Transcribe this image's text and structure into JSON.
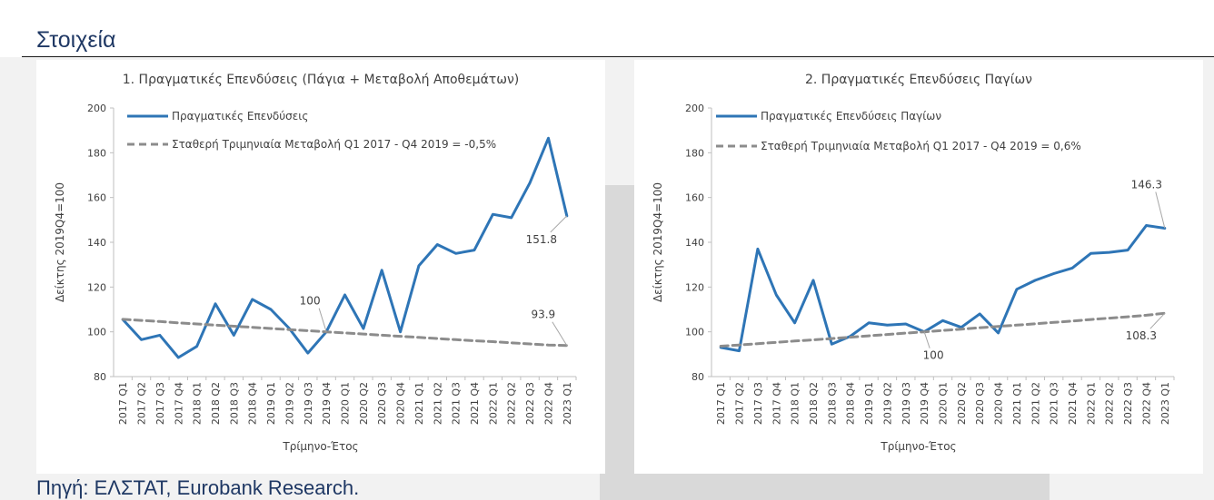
{
  "page": {
    "title": "Στοιχεία",
    "source": "Πηγή: ΕΛΣΤΑΤ, Eurobank Research."
  },
  "colors": {
    "series_main": "#2e75b6",
    "series_trend": "#8c8c8c",
    "title_text": "#1f3864",
    "axis": "#bfbfbf"
  },
  "chart_data": [
    {
      "type": "line",
      "title": "1. Πραγματικές Επενδύσεις (Πάγια + Μεταβολή Αποθεμάτων)",
      "xlabel": "Τρίμηνο-Έτος",
      "ylabel": "Δείκτης 2019Q4=100",
      "ylim": [
        80,
        200
      ],
      "yticks": [
        80,
        100,
        120,
        140,
        160,
        180,
        200
      ],
      "grid": false,
      "legend_position": "top-left",
      "categories": [
        "2017 Q1",
        "2017 Q2",
        "2017 Q3",
        "2017 Q4",
        "2018 Q1",
        "2018 Q2",
        "2018 Q3",
        "2018 Q4",
        "2019 Q1",
        "2019 Q2",
        "2019 Q3",
        "2019 Q4",
        "2020 Q1",
        "2020 Q2",
        "2020 Q3",
        "2020 Q4",
        "2021 Q1",
        "2021 Q2",
        "2021 Q3",
        "2021 Q4",
        "2022 Q1",
        "2022 Q2",
        "2022 Q3",
        "2022 Q4",
        "2023 Q1"
      ],
      "series": [
        {
          "name": "Πραγματικές Επενδύσεις",
          "style": "solid",
          "values": [
            105.5,
            96.5,
            98.5,
            88.5,
            93.5,
            112.5,
            98.5,
            114.5,
            110.0,
            101.5,
            90.5,
            100.0,
            116.5,
            101.5,
            127.5,
            100.0,
            129.5,
            139.0,
            135.0,
            136.5,
            152.5,
            151.0,
            166.5,
            186.5,
            151.8
          ]
        },
        {
          "name": "Σταθερή Τριμηνιαία Μεταβολή Q1 2017 - Q4 2019 = -0,5%",
          "style": "dashed",
          "values": [
            105.6,
            105.1,
            104.6,
            104.0,
            103.5,
            103.0,
            102.5,
            102.0,
            101.5,
            101.0,
            100.5,
            100.0,
            99.5,
            99.0,
            98.5,
            98.0,
            97.5,
            97.0,
            96.5,
            96.0,
            95.6,
            95.1,
            94.6,
            94.1,
            93.9
          ]
        }
      ],
      "annotations": [
        {
          "text": "151.8",
          "category": "2023 Q1",
          "value": 151.8
        },
        {
          "text": "100",
          "category": "2019 Q4",
          "value": 100
        },
        {
          "text": "93.9",
          "category": "2023 Q1",
          "value": 93.9
        }
      ]
    },
    {
      "type": "line",
      "title": "2. Πραγματικές Επενδύσεις Παγίων",
      "xlabel": "Τρίμηνο-Έτος",
      "ylabel": "Δείκτης 2019Q4=100",
      "ylim": [
        80,
        200
      ],
      "yticks": [
        80,
        100,
        120,
        140,
        160,
        180,
        200
      ],
      "grid": false,
      "legend_position": "top-left",
      "categories": [
        "2017 Q1",
        "2017 Q2",
        "2017 Q3",
        "2017 Q4",
        "2018 Q1",
        "2018 Q2",
        "2018 Q3",
        "2018 Q4",
        "2019 Q1",
        "2019 Q2",
        "2019 Q3",
        "2019 Q4",
        "2020 Q1",
        "2020 Q2",
        "2020 Q3",
        "2020 Q4",
        "2021 Q1",
        "2021 Q2",
        "2021 Q3",
        "2021 Q4",
        "2022 Q1",
        "2022 Q2",
        "2022 Q3",
        "2022 Q4",
        "2023 Q1"
      ],
      "series": [
        {
          "name": "Πραγματικές Επενδύσεις Παγίων",
          "style": "solid",
          "values": [
            93.0,
            91.5,
            137.0,
            116.5,
            104.0,
            123.0,
            94.5,
            98.0,
            104.0,
            103.0,
            103.5,
            100.0,
            105.0,
            102.0,
            108.0,
            99.5,
            119.0,
            123.0,
            126.0,
            128.5,
            135.0,
            135.5,
            136.5,
            147.5,
            146.3
          ]
        },
        {
          "name": "Σταθερή Τριμηνιαία Μεταβολή Q1 2017 - Q4 2019 = 0,6%",
          "style": "dashed",
          "values": [
            93.6,
            94.1,
            94.7,
            95.3,
            95.9,
            96.4,
            97.0,
            97.6,
            98.2,
            98.8,
            99.4,
            100.0,
            100.6,
            101.2,
            101.8,
            102.4,
            103.0,
            103.6,
            104.2,
            104.8,
            105.5,
            106.1,
            106.7,
            107.4,
            108.3
          ]
        }
      ],
      "annotations": [
        {
          "text": "146.3",
          "category": "2023 Q1",
          "value": 146.3
        },
        {
          "text": "100",
          "category": "2019 Q4",
          "value": 100
        },
        {
          "text": "108.3",
          "category": "2023 Q1",
          "value": 108.3
        }
      ]
    }
  ]
}
